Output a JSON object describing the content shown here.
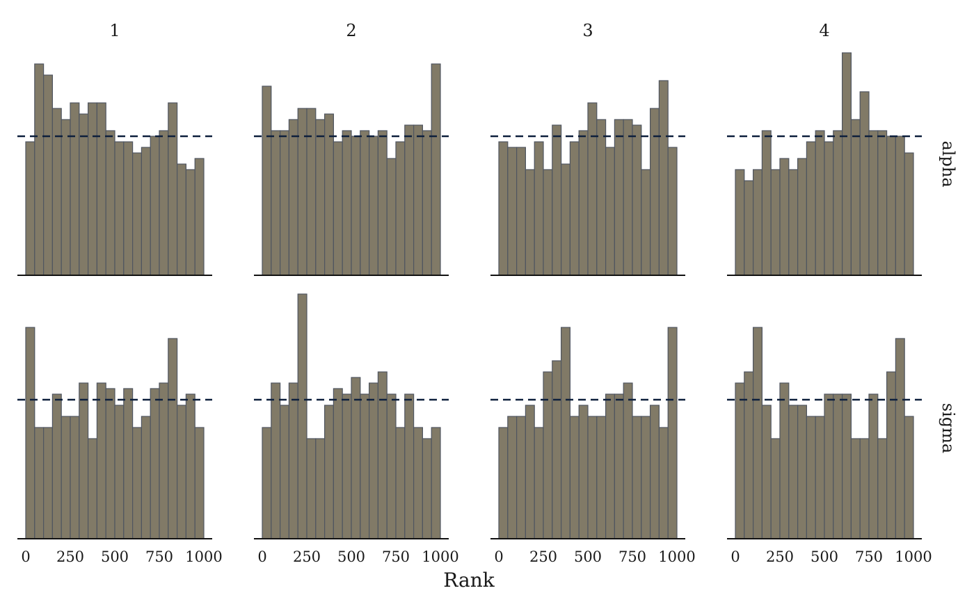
{
  "chart_data": {
    "type": "bar",
    "chart_kind": "rank histogram grid",
    "xlabel": "Rank",
    "columns": [
      "1",
      "2",
      "3",
      "4"
    ],
    "rows": [
      "alpha",
      "sigma"
    ],
    "bin_width": 50,
    "xlim": [
      0,
      1000
    ],
    "xticks": [
      "0",
      "250",
      "500",
      "750",
      "1000"
    ],
    "reference_line": "dashed horizontal at expected uniform count",
    "panels": [
      {
        "row": "alpha",
        "col": "1",
        "ref": 50,
        "values": [
          48,
          76,
          72,
          60,
          56,
          62,
          58,
          62,
          62,
          52,
          48,
          48,
          44,
          46,
          50,
          52,
          62,
          40,
          38,
          42
        ]
      },
      {
        "row": "alpha",
        "col": "2",
        "ref": 50,
        "values": [
          68,
          52,
          52,
          56,
          60,
          60,
          56,
          58,
          48,
          52,
          50,
          52,
          50,
          52,
          42,
          48,
          54,
          54,
          52,
          76
        ]
      },
      {
        "row": "alpha",
        "col": "3",
        "ref": 50,
        "values": [
          48,
          46,
          46,
          38,
          48,
          38,
          54,
          40,
          48,
          52,
          62,
          56,
          46,
          56,
          56,
          54,
          38,
          60,
          70,
          46
        ]
      },
      {
        "row": "alpha",
        "col": "4",
        "ref": 50,
        "values": [
          38,
          34,
          38,
          52,
          38,
          42,
          38,
          42,
          48,
          52,
          48,
          52,
          80,
          56,
          66,
          52,
          52,
          50,
          50,
          44
        ]
      },
      {
        "row": "sigma",
        "col": "1",
        "ref": 50,
        "values": [
          76,
          40,
          40,
          52,
          44,
          44,
          56,
          36,
          56,
          54,
          48,
          54,
          40,
          44,
          54,
          56,
          72,
          48,
          52,
          40
        ]
      },
      {
        "row": "sigma",
        "col": "2",
        "ref": 50,
        "values": [
          40,
          56,
          48,
          56,
          88,
          36,
          36,
          48,
          54,
          52,
          58,
          52,
          56,
          60,
          52,
          40,
          52,
          40,
          36,
          40
        ]
      },
      {
        "row": "sigma",
        "col": "3",
        "ref": 50,
        "values": [
          40,
          44,
          44,
          48,
          40,
          60,
          64,
          76,
          44,
          48,
          44,
          44,
          52,
          52,
          56,
          44,
          44,
          48,
          40,
          76
        ]
      },
      {
        "row": "sigma",
        "col": "4",
        "ref": 50,
        "values": [
          56,
          60,
          76,
          48,
          36,
          56,
          48,
          48,
          44,
          44,
          52,
          52,
          52,
          36,
          36,
          52,
          36,
          60,
          72,
          44
        ]
      }
    ]
  }
}
